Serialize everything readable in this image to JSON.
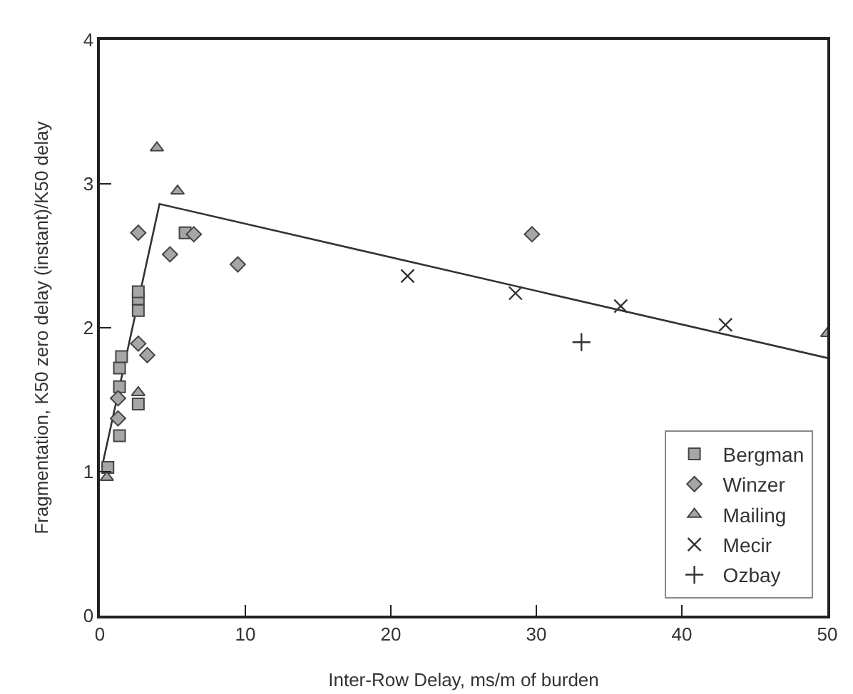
{
  "chart_data": {
    "type": "scatter",
    "xlabel": "Inter-Row Delay, ms/m of burden",
    "ylabel": "Fragmentation, K50 zero delay (instant)/K50 delay",
    "xlim": [
      0,
      50
    ],
    "ylim": [
      0,
      4
    ],
    "xticks": [
      0,
      10,
      20,
      30,
      40,
      50
    ],
    "yticks": [
      0,
      1,
      2,
      3,
      4
    ],
    "grid": false,
    "legend": "bottom right",
    "series": [
      {
        "name": "Bergman",
        "color": "#a6a6a6",
        "marker": "square",
        "x": [
          0.55,
          1.35,
          1.35,
          1.35,
          1.49,
          2.64,
          2.64,
          2.64,
          2.64,
          5.86
        ],
        "values": [
          1.03,
          1.25,
          1.59,
          1.72,
          1.8,
          1.47,
          2.12,
          2.2,
          2.25,
          2.66
        ]
      },
      {
        "name": "Winzer",
        "color": "#a6a6a6",
        "marker": "diamond",
        "x": [
          2.64,
          6.46,
          4.82,
          9.48,
          2.64,
          3.26,
          1.25,
          1.25,
          29.7
        ],
        "values": [
          2.66,
          2.65,
          2.51,
          2.44,
          1.89,
          1.81,
          1.51,
          1.37,
          2.65
        ]
      },
      {
        "name": "Mailing",
        "color": "#a6a6a6",
        "marker": "triangle",
        "x": [
          3.92,
          5.34,
          2.64,
          0.48,
          50
        ],
        "values": [
          3.25,
          2.95,
          1.55,
          0.96,
          1.96
        ]
      },
      {
        "name": "Mecir",
        "color": "#333333",
        "marker": "x",
        "x": [
          21.15,
          28.57,
          35.8,
          43.0
        ],
        "values": [
          2.36,
          2.24,
          2.15,
          2.02
        ]
      },
      {
        "name": "Ozbay",
        "color": "#333333",
        "marker": "cross",
        "x": [
          33.1
        ],
        "values": [
          1.9
        ]
      },
      {
        "type": "line",
        "color": "#333333",
        "marker": "none",
        "line_style": "solid",
        "x": [
          0.14,
          4.1,
          50
        ],
        "values": [
          1.03,
          2.86,
          1.79
        ]
      }
    ]
  }
}
